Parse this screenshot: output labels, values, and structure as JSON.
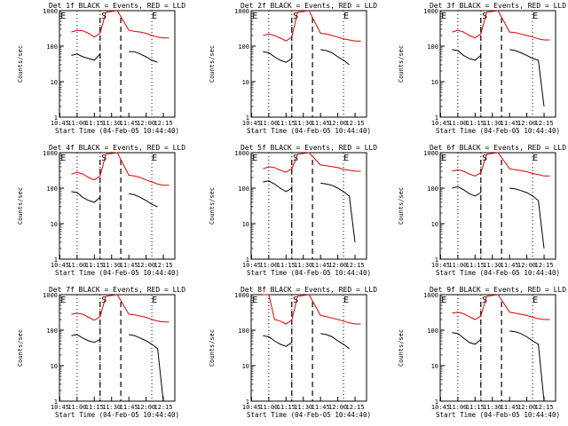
{
  "figure": {
    "background": "#ffffff"
  },
  "colors": {
    "events": "#000000",
    "lld": "#e00000",
    "axes": "#000000"
  },
  "chart_data": [
    {
      "type": "line",
      "title": "Det 1f BLACK = Events, RED = LLD",
      "xlabel": "Start Time (04-Feb-05 10:44:40)",
      "ylabel": "Counts/sec",
      "x_ticks": [
        "10:45",
        "11:00",
        "11:15",
        "11:30",
        "11:45",
        "12:00",
        "12:15"
      ],
      "y_ticks": [
        "1",
        "10",
        "100",
        "1000"
      ],
      "ylim": [
        1,
        1000
      ],
      "yscale": "log",
      "markers": [
        "E",
        "S",
        "E"
      ],
      "x": [
        "10:55",
        "11:00",
        "11:05",
        "11:10",
        "11:15",
        "11:20",
        "11:25",
        "11:35",
        "11:45",
        "11:50",
        "11:55",
        "12:00",
        "12:05",
        "12:10",
        "12:15",
        "12:20"
      ],
      "series": [
        {
          "name": "Events",
          "values": [
            55,
            60,
            50,
            45,
            40,
            60,
            null,
            null,
            70,
            70,
            60,
            50,
            40,
            35,
            null,
            null
          ]
        },
        {
          "name": "LLD",
          "values": [
            250,
            280,
            270,
            230,
            180,
            230,
            900,
            1000,
            280,
            260,
            250,
            230,
            200,
            180,
            170,
            170
          ]
        }
      ]
    },
    {
      "type": "line",
      "title": "Det 2f BLACK = Events, RED = LLD",
      "xlabel": "Start Time (04-Feb-05 10:44:40)",
      "ylabel": "Counts/sec",
      "x_ticks": [
        "10:45",
        "11:00",
        "11:15",
        "11:30",
        "11:45",
        "12:00",
        "12:15"
      ],
      "y_ticks": [
        "1",
        "10",
        "100",
        "1000"
      ],
      "ylim": [
        1,
        1000
      ],
      "yscale": "log",
      "markers": [
        "E",
        "S",
        "E"
      ],
      "x": [
        "10:55",
        "11:00",
        "11:05",
        "11:10",
        "11:15",
        "11:20",
        "11:25",
        "11:35",
        "11:45",
        "11:50",
        "11:55",
        "12:00",
        "12:05",
        "12:10",
        "12:15",
        "12:20"
      ],
      "series": [
        {
          "name": "Events",
          "values": [
            70,
            65,
            50,
            40,
            35,
            45,
            null,
            null,
            80,
            75,
            65,
            50,
            40,
            30,
            null,
            null
          ]
        },
        {
          "name": "LLD",
          "values": [
            200,
            220,
            200,
            170,
            140,
            180,
            900,
            1000,
            230,
            220,
            200,
            180,
            160,
            150,
            140,
            140
          ]
        }
      ]
    },
    {
      "type": "line",
      "title": "Det 3f BLACK = Events, RED = LLD",
      "xlabel": "Start Time (04-Feb-05 10:44:40)",
      "ylabel": "Counts/sec",
      "x_ticks": [
        "10:45",
        "11:00",
        "11:15",
        "11:30",
        "11:45",
        "12:00",
        "12:15"
      ],
      "y_ticks": [
        "1",
        "10",
        "100",
        "1000"
      ],
      "ylim": [
        1,
        1000
      ],
      "yscale": "log",
      "markers": [
        "E",
        "S",
        "E"
      ],
      "x": [
        "10:55",
        "11:00",
        "11:05",
        "11:10",
        "11:15",
        "11:20",
        "11:25",
        "11:35",
        "11:45",
        "11:50",
        "11:55",
        "12:00",
        "12:05",
        "12:10",
        "12:15",
        "12:20"
      ],
      "series": [
        {
          "name": "Events",
          "values": [
            80,
            75,
            55,
            45,
            40,
            55,
            null,
            null,
            80,
            75,
            65,
            55,
            45,
            40,
            2,
            null
          ]
        },
        {
          "name": "LLD",
          "values": [
            250,
            280,
            250,
            200,
            170,
            220,
            900,
            1000,
            250,
            240,
            220,
            200,
            180,
            160,
            150,
            150
          ]
        }
      ]
    },
    {
      "type": "line",
      "title": "Det 4f BLACK = Events, RED = LLD",
      "xlabel": "Start Time (04-Feb-05 10:44:40)",
      "ylabel": "Counts/sec",
      "x_ticks": [
        "10:45",
        "11:00",
        "11:15",
        "11:30",
        "11:45",
        "12:00",
        "12:15"
      ],
      "y_ticks": [
        "1",
        "10",
        "100",
        "1000"
      ],
      "ylim": [
        1,
        1000
      ],
      "yscale": "log",
      "markers": [
        "E",
        "S",
        "E"
      ],
      "x": [
        "10:55",
        "11:00",
        "11:05",
        "11:10",
        "11:15",
        "11:20",
        "11:25",
        "11:35",
        "11:45",
        "11:50",
        "11:55",
        "12:00",
        "12:05",
        "12:10",
        "12:15",
        "12:20"
      ],
      "series": [
        {
          "name": "Events",
          "values": [
            80,
            75,
            55,
            45,
            40,
            55,
            null,
            null,
            70,
            65,
            55,
            45,
            35,
            30,
            null,
            null
          ]
        },
        {
          "name": "LLD",
          "values": [
            250,
            280,
            250,
            200,
            170,
            220,
            900,
            1000,
            230,
            220,
            200,
            170,
            150,
            130,
            120,
            120
          ]
        }
      ]
    },
    {
      "type": "line",
      "title": "Det 5f BLACK = Events, RED = LLD",
      "xlabel": "Start Time (04-Feb-05 10:44:40)",
      "ylabel": "Counts/sec",
      "x_ticks": [
        "10:45",
        "11:00",
        "11:15",
        "11:30",
        "11:45",
        "12:00",
        "12:15"
      ],
      "y_ticks": [
        "1",
        "10",
        "100",
        "1000"
      ],
      "ylim": [
        1,
        1000
      ],
      "yscale": "log",
      "markers": [
        "E",
        "S",
        "E"
      ],
      "x": [
        "10:55",
        "11:00",
        "11:05",
        "11:10",
        "11:15",
        "11:20",
        "11:25",
        "11:35",
        "11:45",
        "11:50",
        "11:55",
        "12:00",
        "12:05",
        "12:10",
        "12:15",
        "12:20"
      ],
      "series": [
        {
          "name": "Events",
          "values": [
            150,
            160,
            130,
            100,
            80,
            100,
            null,
            null,
            140,
            130,
            120,
            100,
            80,
            60,
            3,
            null
          ]
        },
        {
          "name": "LLD",
          "values": [
            350,
            400,
            380,
            320,
            280,
            350,
            900,
            1000,
            450,
            430,
            400,
            380,
            340,
            320,
            300,
            300
          ]
        }
      ]
    },
    {
      "type": "line",
      "title": "Det 6f BLACK = Events, RED = LLD",
      "xlabel": "Start Time (04-Feb-05 10:44:40)",
      "ylabel": "Counts/sec",
      "x_ticks": [
        "10:45",
        "11:00",
        "11:15",
        "11:30",
        "11:45",
        "12:00",
        "12:15"
      ],
      "y_ticks": [
        "1",
        "10",
        "100",
        "1000"
      ],
      "ylim": [
        1,
        1000
      ],
      "yscale": "log",
      "markers": [
        "E",
        "S",
        "E"
      ],
      "x": [
        "10:55",
        "11:00",
        "11:05",
        "11:10",
        "11:15",
        "11:20",
        "11:25",
        "11:35",
        "11:45",
        "11:50",
        "11:55",
        "12:00",
        "12:05",
        "12:10",
        "12:15",
        "12:20"
      ],
      "series": [
        {
          "name": "Events",
          "values": [
            100,
            110,
            90,
            70,
            60,
            75,
            null,
            null,
            100,
            95,
            85,
            75,
            60,
            45,
            2,
            null
          ]
        },
        {
          "name": "LLD",
          "values": [
            300,
            330,
            300,
            250,
            220,
            270,
            900,
            1000,
            350,
            330,
            310,
            290,
            260,
            240,
            220,
            220
          ]
        }
      ]
    },
    {
      "type": "line",
      "title": "Det 7f BLACK = Events, RED = LLD",
      "xlabel": "Start Time (04-Feb-05 10:44:40)",
      "ylabel": "Counts/sec",
      "x_ticks": [
        "10:45",
        "11:00",
        "11:15",
        "11:30",
        "11:45",
        "12:00",
        "12:15"
      ],
      "y_ticks": [
        "1",
        "10",
        "100",
        "1000"
      ],
      "ylim": [
        1,
        1000
      ],
      "yscale": "log",
      "markers": [
        "E",
        "S",
        "E"
      ],
      "x": [
        "10:55",
        "11:00",
        "11:05",
        "11:10",
        "11:15",
        "11:20",
        "11:25",
        "11:35",
        "11:45",
        "11:50",
        "11:55",
        "12:00",
        "12:05",
        "12:10",
        "12:15",
        "12:20"
      ],
      "series": [
        {
          "name": "Events",
          "values": [
            70,
            75,
            60,
            50,
            45,
            55,
            null,
            null,
            75,
            70,
            60,
            50,
            40,
            30,
            1,
            null
          ]
        },
        {
          "name": "LLD",
          "values": [
            280,
            300,
            280,
            230,
            190,
            240,
            900,
            1000,
            280,
            270,
            250,
            230,
            200,
            180,
            170,
            170
          ]
        }
      ]
    },
    {
      "type": "line",
      "title": "Det 8f BLACK = Events, RED = LLD",
      "xlabel": "Start Time (04-Feb-05 10:44:40)",
      "ylabel": "Counts/sec",
      "x_ticks": [
        "10:45",
        "11:00",
        "11:15",
        "11:30",
        "11:45",
        "12:00",
        "12:15"
      ],
      "y_ticks": [
        "1",
        "10",
        "100",
        "1000"
      ],
      "ylim": [
        1,
        1000
      ],
      "yscale": "log",
      "markers": [
        "E",
        "S",
        "E"
      ],
      "x": [
        "10:55",
        "11:00",
        "11:05",
        "11:10",
        "11:15",
        "11:20",
        "11:25",
        "11:35",
        "11:45",
        "11:50",
        "11:55",
        "12:00",
        "12:05",
        "12:10",
        "12:15",
        "12:20"
      ],
      "series": [
        {
          "name": "Events",
          "values": [
            70,
            65,
            50,
            40,
            35,
            45,
            null,
            null,
            80,
            75,
            65,
            50,
            40,
            30,
            null,
            null
          ]
        },
        {
          "name": "LLD",
          "values": [
            1000,
            1000,
            200,
            180,
            150,
            190,
            900,
            1000,
            260,
            240,
            220,
            200,
            180,
            160,
            150,
            150
          ]
        }
      ]
    },
    {
      "type": "line",
      "title": "Det 9f BLACK = Events, RED = LLD",
      "xlabel": "Start Time (04-Feb-05 10:44:40)",
      "ylabel": "Counts/sec",
      "x_ticks": [
        "10:45",
        "11:00",
        "11:15",
        "11:30",
        "11:45",
        "12:00",
        "12:15"
      ],
      "y_ticks": [
        "1",
        "10",
        "100",
        "1000"
      ],
      "ylim": [
        1,
        1000
      ],
      "yscale": "log",
      "markers": [
        "E",
        "S",
        "E"
      ],
      "x": [
        "10:55",
        "11:00",
        "11:05",
        "11:10",
        "11:15",
        "11:20",
        "11:25",
        "11:35",
        "11:45",
        "11:50",
        "11:55",
        "12:00",
        "12:05",
        "12:10",
        "12:15",
        "12:20"
      ],
      "series": [
        {
          "name": "Events",
          "values": [
            85,
            80,
            60,
            45,
            40,
            55,
            null,
            null,
            95,
            90,
            80,
            65,
            50,
            40,
            1,
            null
          ]
        },
        {
          "name": "LLD",
          "values": [
            300,
            320,
            290,
            240,
            200,
            250,
            900,
            1000,
            320,
            300,
            280,
            260,
            230,
            210,
            200,
            200
          ]
        }
      ]
    }
  ]
}
